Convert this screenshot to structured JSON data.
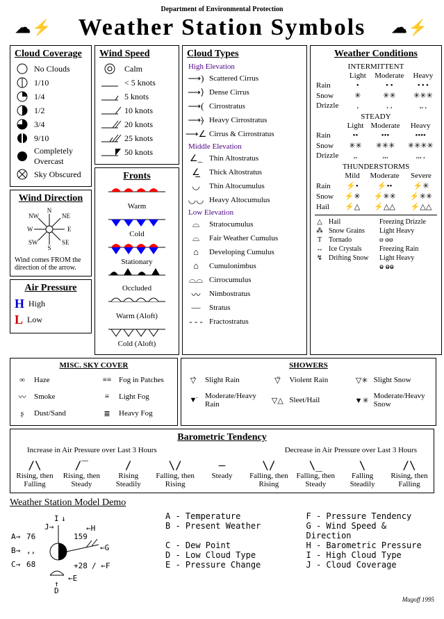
{
  "dept": "Department of Environmental Protection",
  "title": "Weather Station Symbols",
  "signature": "Magoff 1995",
  "cloud_coverage": {
    "heading": "Cloud Coverage",
    "items": [
      {
        "label": "No Clouds",
        "fill": 0
      },
      {
        "label": "1/10",
        "fill": 0.1
      },
      {
        "label": "1/4",
        "fill": 0.25
      },
      {
        "label": "1/2",
        "fill": 0.5
      },
      {
        "label": "3/4",
        "fill": 0.75
      },
      {
        "label": "9/10",
        "fill": 0.9
      },
      {
        "label": "Completely Overcast",
        "fill": 1
      },
      {
        "label": "Sky Obscured",
        "fill": -1
      }
    ]
  },
  "wind_direction": {
    "heading": "Wind Direction",
    "note": "Wind comes FROM the direction of the arrow.",
    "dirs": [
      "N",
      "NE",
      "E",
      "SE",
      "S",
      "SW",
      "W",
      "NW"
    ]
  },
  "air_pressure": {
    "heading": "Air Pressure",
    "high": "High",
    "low": "Low",
    "high_color": "#0000cc",
    "low_color": "#cc0000"
  },
  "wind_speed": {
    "heading": "Wind Speed",
    "items": [
      {
        "label": "Calm",
        "type": "calm"
      },
      {
        "label": "< 5 knots",
        "type": "none"
      },
      {
        "label": "5 knots",
        "type": "half"
      },
      {
        "label": "10 knots",
        "type": "full"
      },
      {
        "label": "20 knots",
        "type": "two"
      },
      {
        "label": "25 knots",
        "type": "two_half"
      },
      {
        "label": "50 knots",
        "type": "flag"
      }
    ]
  },
  "fronts": {
    "heading": "Fronts",
    "items": [
      {
        "label": "Warm",
        "style": "warm"
      },
      {
        "label": "Cold",
        "style": "cold"
      },
      {
        "label": "Stationary",
        "style": "stationary"
      },
      {
        "label": "Occluded",
        "style": "occluded"
      },
      {
        "label": "Warm (Aloft)",
        "style": "warm_aloft"
      },
      {
        "label": "Cold (Aloft)",
        "style": "cold_aloft"
      }
    ],
    "warm_color": "#ff0000",
    "cold_color": "#0000ff"
  },
  "cloud_types": {
    "heading": "Cloud Types",
    "groups": [
      {
        "title": "High Elevation",
        "color": "#4b0082",
        "items": [
          "Scattered Cirrus",
          "Dense Cirrus",
          "Cirrostratus",
          "Heavy Cirrostratus",
          "Cirrus & Cirrostratus"
        ]
      },
      {
        "title": "Middle Elevation",
        "color": "#4b0082",
        "items": [
          "Thin Altostratus",
          "Thick Altostratus",
          "Thin Altocumulus",
          "Heavy Altocumulus"
        ]
      },
      {
        "title": "Low Elevation",
        "color": "#4b0082",
        "items": [
          "Stratocumulus",
          "Fair Weather Cumulus",
          "Developing Cumulus",
          "Cumulonimbus",
          "Cirrocumulus",
          "Nimbostratus",
          "Stratus",
          "Fractostratus"
        ]
      }
    ]
  },
  "weather_conditions": {
    "heading": "Weather Conditions",
    "sections": [
      {
        "title": "INTERMITTENT",
        "cols": [
          "Light",
          "Moderate",
          "Heavy"
        ],
        "rows": [
          {
            "label": "Rain",
            "glyphs": [
              "•",
              "• •",
              "• • •"
            ]
          },
          {
            "label": "Snow",
            "glyphs": [
              "✳",
              "✳✳",
              "✳✳✳"
            ]
          },
          {
            "label": "Drizzle",
            "glyphs": [
              ",",
              ", ,",
              ",, ,"
            ]
          }
        ]
      },
      {
        "title": "STEADY",
        "cols": [
          "Light",
          "Moderate",
          "Heavy"
        ],
        "rows": [
          {
            "label": "Rain",
            "glyphs": [
              "••",
              "•••",
              "••••"
            ]
          },
          {
            "label": "Snow",
            "glyphs": [
              "✳✳",
              "✳✳✳",
              "✳✳✳✳"
            ]
          },
          {
            "label": "Drizzle",
            "glyphs": [
              ",,",
              ",,,",
              ",,, ,"
            ]
          }
        ]
      },
      {
        "title": "THUNDERSTORMS",
        "cols": [
          "Mild",
          "Moderate",
          "Severe"
        ],
        "rows": [
          {
            "label": "Rain",
            "glyphs": [
              "⚡•",
              "⚡••",
              "⚡✳"
            ]
          },
          {
            "label": "Snow",
            "glyphs": [
              "⚡✳",
              "⚡✳✳",
              "⚡✳✳"
            ]
          },
          {
            "label": "Hail",
            "glyphs": [
              "⚡△",
              "⚡△△",
              "⚡△△"
            ]
          }
        ]
      }
    ],
    "footer": [
      {
        "sym": "△",
        "label": "Hail"
      },
      {
        "sym": "⁂",
        "label": "Snow Grains"
      },
      {
        "sym": "Ƭ",
        "label": "Tornado"
      },
      {
        "sym": "↔",
        "label": "Ice Crystals"
      },
      {
        "sym": "↯",
        "label": "Drifting Snow"
      }
    ],
    "footer2": [
      {
        "label": "Freezing Drizzle",
        "sub": "Light  Heavy",
        "sym": "ⱷ  ⱷⱷ"
      },
      {
        "label": "Freezing Rain",
        "sub": "Light  Heavy",
        "sym": "ⱺ  ⱺⱺ"
      }
    ]
  },
  "misc_sky": {
    "heading": "MISC. SKY COVER",
    "items": [
      {
        "sym": "∞",
        "label": "Haze"
      },
      {
        "sym": "≡≡",
        "label": "Fog in Patches"
      },
      {
        "sym": "〰",
        "label": "Smoke"
      },
      {
        "sym": "≡",
        "label": "Light Fog"
      },
      {
        "sym": "ʂ",
        "label": "Dust/Sand"
      },
      {
        "sym": "≣",
        "label": "Heavy Fog"
      }
    ]
  },
  "showers": {
    "heading": "SHOWERS",
    "items": [
      {
        "sym": "▽̇",
        "label": "Slight Rain"
      },
      {
        "sym": "▽̈",
        "label": "Violent Rain"
      },
      {
        "sym": "▽✳",
        "label": "Slight Snow"
      },
      {
        "sym": "▼̇",
        "label": "Moderate/Heavy Rain"
      },
      {
        "sym": "▽△",
        "label": "Sleet/Hail"
      },
      {
        "sym": "▼✳",
        "label": "Moderate/Heavy Snow"
      }
    ]
  },
  "barometric": {
    "heading": "Barometric Tendency",
    "left_caption": "Increase in Air Pressure over Last 3 Hours",
    "right_caption": "Decrease in Air Pressure over Last 3 Hours",
    "items": [
      "Rising, then Falling",
      "Rising, then Steady",
      "Rising Steadily",
      "Falling, then Rising",
      "Steady",
      "Falling, then Rising",
      "Falling, then Steady",
      "Falling Steadily",
      "Rising, then Falling"
    ]
  },
  "demo": {
    "heading": "Weather Station Model Demo",
    "A": "76",
    "B": ",,",
    "C": "68",
    "E": "+28",
    "J_label": "J",
    "I_label": "I",
    "H_label": "H",
    "G_label": "G",
    "F_label": "F",
    "D_label": "D",
    "pressure": "159",
    "legend": [
      "A - Temperature",
      "F - Pressure Tendency",
      "B - Present Weather",
      "G - Wind Speed & Direction",
      "C - Dew Point",
      "H - Barometric Pressure",
      "D - Low Cloud Type",
      "I - High Cloud Type",
      "E - Pressure Change",
      "J - Cloud Coverage"
    ]
  }
}
